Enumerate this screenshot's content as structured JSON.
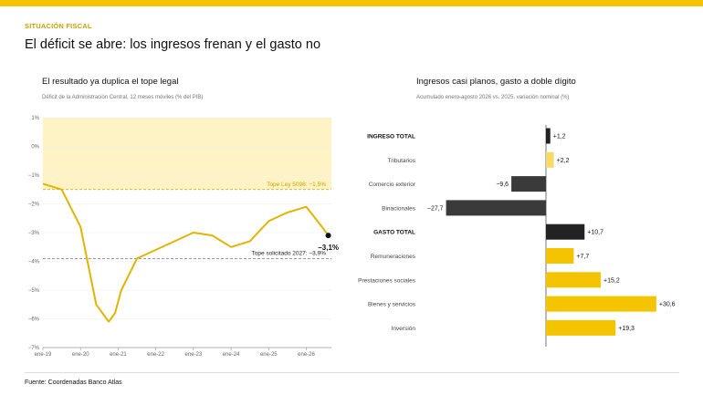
{
  "header": {
    "kicker": "SITUACIÓN FISCAL",
    "headline": "El déficit se abre: los ingresos frenan y el gasto no"
  },
  "left_panel": {
    "title": "El resultado ya duplica el tope legal",
    "subtitle": "Déficit de la Administración Central, 12 meses móviles (% del PIB)"
  },
  "right_panel": {
    "title": "Ingresos casi planos, gasto a doble dígito",
    "subtitle": "Acumulado enero-agosto 2026 vs. 2025, variación nominal (%)"
  },
  "source": "Fuente: Coordenadas Banco Atlas",
  "colors": {
    "accent": "#f5c400",
    "dark": "#333333",
    "band": "#fdf3c4",
    "kicker": "#c9a100"
  },
  "chart_data": [
    {
      "type": "line",
      "xlim": [
        "2019-01",
        "2026-09"
      ],
      "ylim": [
        -7,
        1
      ],
      "yticks": [
        1,
        0,
        -1,
        -2,
        -3,
        -4,
        -5,
        -6,
        -7
      ],
      "ytick_labels": [
        "1%",
        "0%",
        "−1%",
        "−2%",
        "−3%",
        "−4%",
        "−5%",
        "−6%",
        "−7%"
      ],
      "xticks": [
        "2019-01",
        "2020-01",
        "2021-01",
        "2022-01",
        "2023-01",
        "2024-01",
        "2025-01",
        "2026-01"
      ],
      "xtick_labels": [
        "ene-19",
        "ene-20",
        "ene-21",
        "ene-22",
        "ene-23",
        "ene-24",
        "ene-25",
        "ene-26"
      ],
      "band": {
        "from": -1.5,
        "to": 1
      },
      "reference_lines": [
        {
          "y": -1.5,
          "label": "Tope Ley 5098: −1,5%",
          "color": "#c9a100"
        },
        {
          "y": -3.9,
          "label": "Tope solicitado 2027: −3,9%",
          "color": "#777777"
        }
      ],
      "series": [
        {
          "x": [
            "2019-01",
            "2019-07",
            "2020-01",
            "2020-06",
            "2020-10",
            "2020-12",
            "2021-02",
            "2021-07",
            "2022-01",
            "2022-07",
            "2023-01",
            "2023-07",
            "2024-01",
            "2024-07",
            "2025-01",
            "2025-07",
            "2026-01",
            "2026-06",
            "2026-08"
          ],
          "y": [
            -1.3,
            -1.5,
            -2.8,
            -5.5,
            -6.1,
            -5.8,
            -5.0,
            -3.9,
            -3.6,
            -3.3,
            -3.0,
            -3.1,
            -3.5,
            -3.3,
            -2.6,
            -2.3,
            -2.1,
            -2.8,
            -3.1
          ],
          "color": "#e0b400"
        }
      ],
      "end_label": "−3,1%"
    },
    {
      "type": "bar",
      "orientation": "horizontal",
      "categories": [
        "INGRESO TOTAL",
        "Tributarios",
        "Comercio exterior",
        "Binacionales",
        "GASTO TOTAL",
        "Remuneraciones",
        "Prestaciones sociales",
        "Bienes y servicios",
        "Inversión"
      ],
      "bold": [
        true,
        false,
        false,
        false,
        true,
        false,
        false,
        false,
        false
      ],
      "values": [
        1.2,
        2.2,
        -9.6,
        -27.7,
        10.7,
        7.7,
        15.2,
        30.6,
        19.3
      ],
      "labels": [
        "+1,2",
        "+2,2",
        "−9,6",
        "−27,7",
        "+10,7",
        "+7,7",
        "+15,2",
        "+30,6",
        "+19,3"
      ],
      "colors": [
        "#222222",
        "#f7d96a",
        "#3a3a3a",
        "#3a3a3a",
        "#222222",
        "#f5c400",
        "#f5c400",
        "#f5c400",
        "#f5c400"
      ]
    }
  ]
}
